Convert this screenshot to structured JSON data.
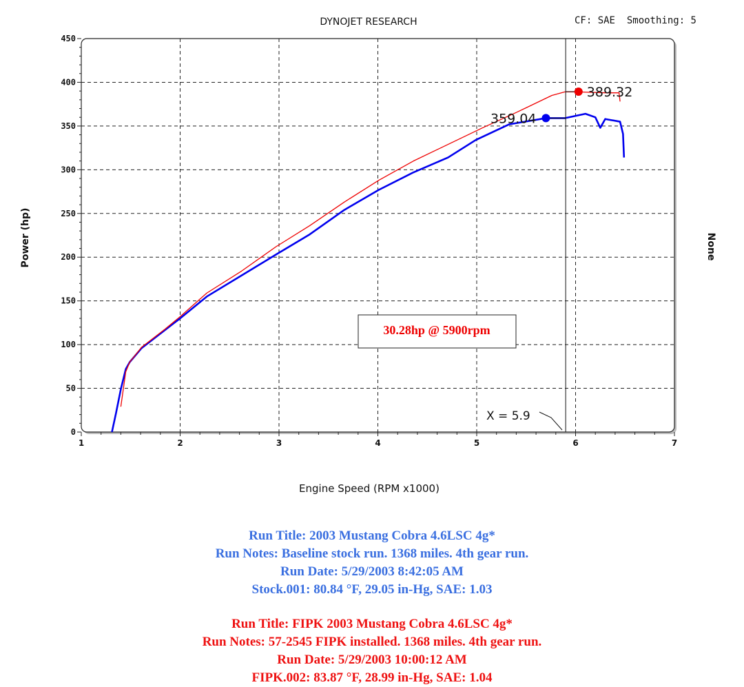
{
  "chart_data": {
    "type": "line",
    "title": "DYNOJET RESEARCH",
    "subtitle": "CF: SAE  Smoothing: 5",
    "xlabel": "Engine Speed (RPM x1000)",
    "ylabel": "Power (hp)",
    "right_label": "None",
    "xlim": [
      1,
      7
    ],
    "ylim": [
      0,
      450
    ],
    "x_ticks": [
      "1",
      "2",
      "3",
      "4",
      "5",
      "6",
      "7"
    ],
    "y_ticks": [
      "0",
      "50",
      "100",
      "150",
      "200",
      "250",
      "300",
      "350",
      "400",
      "450"
    ],
    "grid": true,
    "cursor": {
      "x": 5.9,
      "label": "X = 5.9"
    },
    "annotation": "30.28hp @ 5900rpm",
    "series": [
      {
        "color": "#0000ee",
        "peak": {
          "x": 5.7,
          "y": 359.04,
          "label": "359.04"
        },
        "x": [
          1.31,
          1.35,
          1.4,
          1.45,
          1.49,
          1.61,
          1.85,
          2.0,
          2.27,
          2.62,
          2.97,
          3.31,
          3.66,
          4.01,
          4.36,
          4.71,
          4.99,
          5.33,
          5.7,
          5.89,
          6.1,
          6.2,
          6.25,
          6.3,
          6.45,
          6.48,
          6.49
        ],
        "y": [
          0,
          21,
          49,
          72,
          80,
          96,
          117,
          130,
          155,
          179,
          203,
          226,
          254,
          277,
          297,
          314,
          334,
          352,
          359,
          359,
          364,
          360,
          348,
          358,
          355,
          341,
          314
        ]
      },
      {
        "color": "#ee0000",
        "peak": {
          "x": 6.03,
          "y": 389.32,
          "label": "389.32"
        },
        "x": [
          1.4,
          1.42,
          1.45,
          1.49,
          1.61,
          1.85,
          2.0,
          2.27,
          2.62,
          2.97,
          3.31,
          3.66,
          4.01,
          4.36,
          4.71,
          5.06,
          5.41,
          5.76,
          5.89,
          6.03,
          6.31,
          6.44,
          6.45
        ],
        "y": [
          29,
          45,
          69,
          80,
          97,
          118,
          132,
          159,
          184,
          212,
          236,
          263,
          288,
          310,
          329,
          348,
          366,
          385,
          389,
          389,
          388,
          388,
          378
        ]
      }
    ]
  },
  "runs": [
    {
      "color": "#3a6fe0",
      "title": "Run Title: 2003 Mustang Cobra 4.6LSC 4g*",
      "notes": "Run Notes: Baseline stock run. 1368 miles. 4th gear run.",
      "date": "Run Date: 5/29/2003 8:42:05 AM",
      "conditions": "Stock.001: 80.84 °F, 29.05 in-Hg, SAE: 1.03"
    },
    {
      "color": "#ee1111",
      "title": "Run Title: FIPK 2003 Mustang Cobra 4.6LSC 4g*",
      "notes": "Run Notes: 57-2545 FIPK installed. 1368 miles. 4th gear run.",
      "date": "Run Date: 5/29/2003 10:00:12 AM",
      "conditions": "FIPK.002: 83.87 °F, 28.99 in-Hg, SAE: 1.04"
    }
  ]
}
